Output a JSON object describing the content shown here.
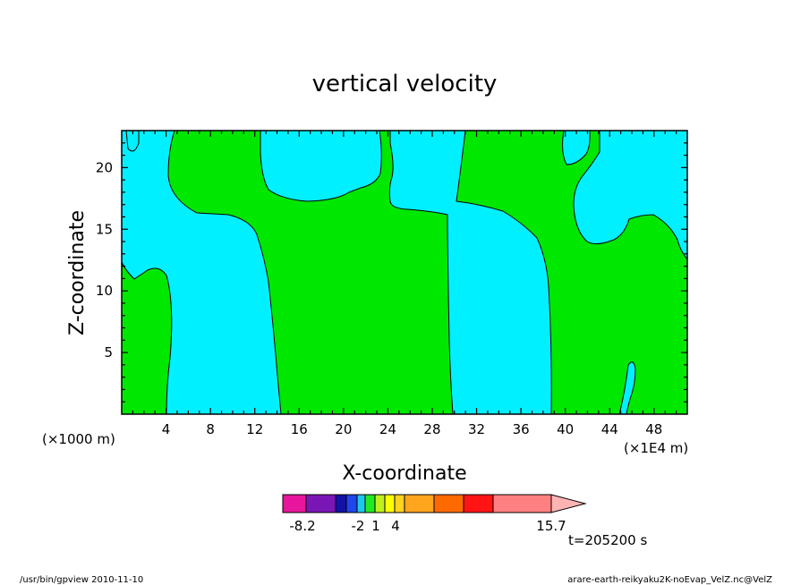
{
  "chart_data": {
    "type": "heatmap",
    "title": "vertical velocity",
    "xlabel": "X-coordinate",
    "ylabel": "Z-coordinate",
    "x_unit_left": "(×1000 m)",
    "x_unit_right": "(×1E4 m)",
    "xlim": [
      0,
      51
    ],
    "ylim": [
      0,
      23
    ],
    "xticks": [
      4,
      8,
      12,
      16,
      20,
      24,
      28,
      32,
      36,
      40,
      44,
      48
    ],
    "yticks": [
      5,
      10,
      15,
      20
    ],
    "colorbar": {
      "colors": [
        "#e8169c",
        "#7b16b6",
        "#1212a6",
        "#1e46ea",
        "#1ec8ea",
        "#22ea22",
        "#bef01e",
        "#ffff00",
        "#ffd21e",
        "#ffa51e",
        "#ff6a00",
        "#ff1414",
        "#ff8080"
      ],
      "end_color": "#ffb4b4",
      "labels": [
        "-8.2",
        "-2",
        "1",
        "4",
        "15.7"
      ]
    },
    "region_colors": {
      "negative": "#00f0ff",
      "positive": "#00e800"
    },
    "time_label": "t=205200 s",
    "footer_left": "/usr/bin/gpview   2010-11-10",
    "footer_right": "arare-earth-reikyaku2K-noEvap_VelZ.nc@VelZ"
  }
}
